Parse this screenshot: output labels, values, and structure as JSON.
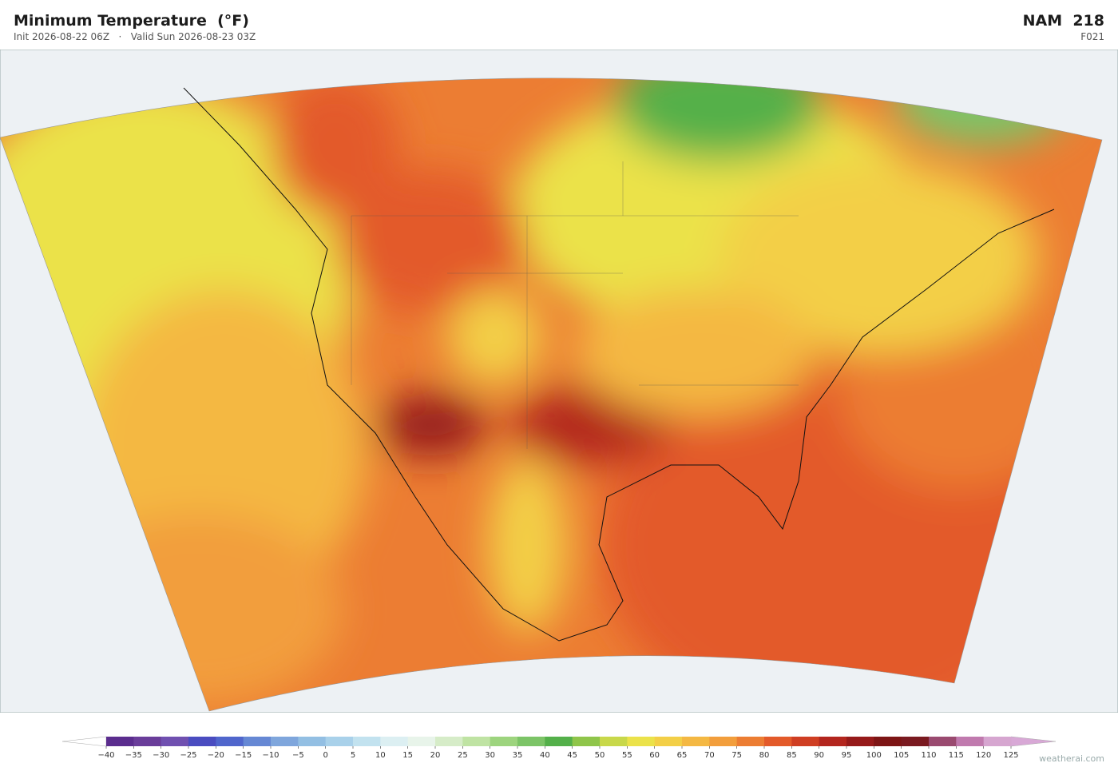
{
  "header": {
    "title": "Minimum Temperature  (°F)",
    "init": "Init 2026-08-22 06Z",
    "separator": "·",
    "valid": "Valid Sun 2026-08-23 03Z",
    "model": "NAM  218",
    "forecast_hour": "F021"
  },
  "colorbar": {
    "ticks": [
      {
        "value": -40,
        "label": "−40"
      },
      {
        "value": -35,
        "label": "−35"
      },
      {
        "value": -30,
        "label": "−30"
      },
      {
        "value": -25,
        "label": "−25"
      },
      {
        "value": -20,
        "label": "−20"
      },
      {
        "value": -15,
        "label": "−15"
      },
      {
        "value": -10,
        "label": "−10"
      },
      {
        "value": -5,
        "label": "−5"
      },
      0,
      5,
      10,
      15,
      20,
      25,
      30,
      35,
      40,
      45,
      50,
      55,
      60,
      65,
      70,
      75,
      80,
      85,
      90,
      95,
      100,
      105,
      110,
      115,
      120,
      125
    ],
    "colors": [
      "#5b2d8e",
      "#6a3d9a",
      "#7050b0",
      "#4a4cc0",
      "#5066cc",
      "#6688d4",
      "#7fa6dc",
      "#93bfe3",
      "#a9d1ea",
      "#c2e2ef",
      "#dceff2",
      "#e8f4ea",
      "#d6ecc8",
      "#bfe3a3",
      "#9dd47e",
      "#7cc467",
      "#54b04a",
      "#8fc54a",
      "#c8d84a",
      "#ebe24a",
      "#f3cf47",
      "#f4b843",
      "#f29e3c",
      "#ec7d33",
      "#e35a2a",
      "#cf3e23",
      "#b3261e",
      "#961a1a",
      "#7d1515",
      "#7a1a20",
      "#9a4a70",
      "#c07aae",
      "#d6a6d0"
    ],
    "under_color": "#ffffff",
    "over_color": "#d8a8d6"
  },
  "footer": {
    "credit": "weatherai.com"
  }
}
